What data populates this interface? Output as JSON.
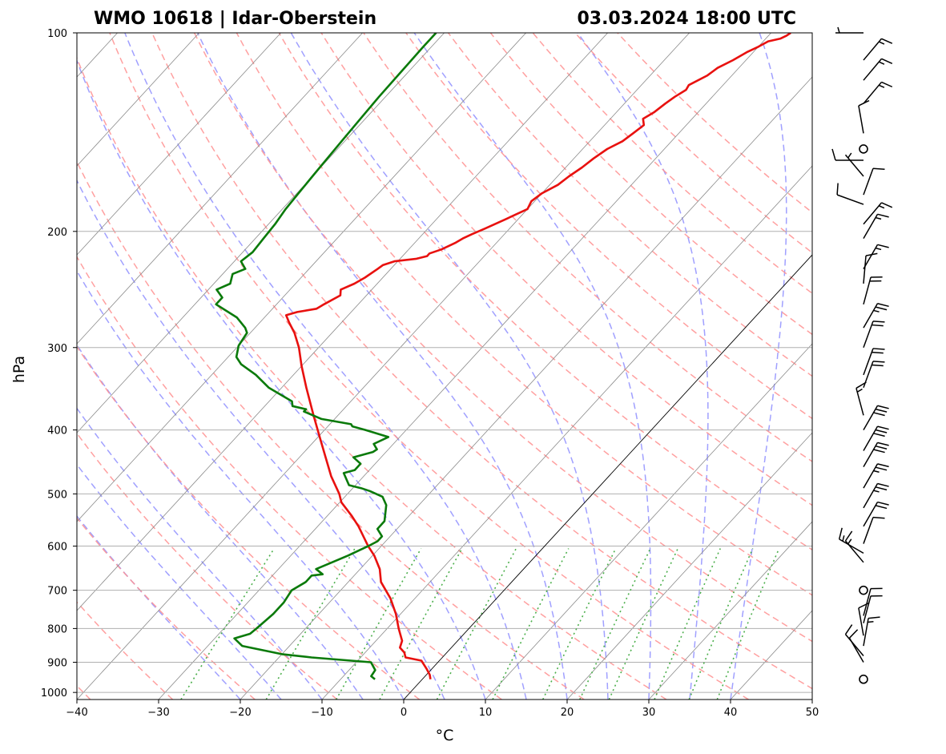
{
  "title_left": "WMO 10618 | Idar-Oberstein",
  "title_right": "03.03.2024 18:00 UTC",
  "chart_data": {
    "type": "line",
    "subtype": "skew-t log-p sounding",
    "xlabel": "°C",
    "ylabel": "hPa",
    "xlim": [
      -40,
      50
    ],
    "ylim": [
      1025,
      100
    ],
    "y_scale": "log",
    "grid": true,
    "x_ticks": [
      -40,
      -30,
      -20,
      -10,
      0,
      10,
      20,
      30,
      40,
      50
    ],
    "x_tick_labels": [
      "−40",
      "−30",
      "−20",
      "−10",
      "0",
      "10",
      "20",
      "30",
      "40",
      "50"
    ],
    "y_ticks": [
      1000,
      900,
      800,
      700,
      600,
      500,
      400,
      300,
      200,
      100
    ],
    "y_tick_labels": [
      "1000",
      "900",
      "800",
      "700",
      "600",
      "500",
      "400",
      "300",
      "200",
      "100"
    ],
    "colors": {
      "temperature": "#e8110f",
      "dewpoint": "#0a7a0a",
      "dry_adiabat": "#ff8f8f",
      "moist_adiabat": "#8f8fff",
      "mixing_ratio": "#4caf4c",
      "isotherm": "#8a8a8a",
      "isobar": "#b0b0b0",
      "zero_isotherm": "#000000",
      "barb": "#000000"
    },
    "series": [
      {
        "key": "temperature",
        "p": [
          955,
          940,
          920,
          895,
          885,
          870,
          855,
          835,
          800,
          760,
          720,
          680,
          650,
          620,
          600,
          560,
          540,
          515,
          500,
          470,
          440,
          410,
          380,
          345,
          320,
          300,
          285,
          275,
          268,
          265,
          262,
          258,
          250,
          245,
          240,
          235,
          228,
          225,
          222,
          220,
          218,
          216,
          213,
          208,
          205,
          202,
          198,
          192,
          185,
          180,
          175,
          170,
          165,
          160,
          155,
          150,
          146,
          142,
          138,
          135,
          132,
          128,
          125,
          122,
          120,
          116,
          113,
          110,
          107,
          105,
          103,
          102,
          101,
          100
        ],
        "t": [
          1.0,
          0.4,
          -0.7,
          -2.2,
          -4.5,
          -5.2,
          -6.3,
          -6.8,
          -8.6,
          -10.6,
          -13.0,
          -16.0,
          -17.6,
          -19.8,
          -21.6,
          -25.0,
          -27.0,
          -29.8,
          -31.0,
          -34.0,
          -36.8,
          -39.8,
          -43.0,
          -47.0,
          -50.0,
          -52.4,
          -54.6,
          -56.4,
          -57.6,
          -56.6,
          -54.6,
          -54.2,
          -53.2,
          -53.8,
          -52.8,
          -52.2,
          -51.6,
          -51.4,
          -50.4,
          -48.0,
          -47.0,
          -47.0,
          -46.0,
          -45.0,
          -44.6,
          -44.0,
          -43.0,
          -41.6,
          -40.0,
          -40.4,
          -40.0,
          -39.0,
          -38.6,
          -38.0,
          -37.6,
          -37.0,
          -36.0,
          -35.6,
          -35.2,
          -36.0,
          -35.4,
          -35.0,
          -34.6,
          -34.0,
          -34.2,
          -33.0,
          -32.6,
          -31.6,
          -30.8,
          -30.0,
          -29.4,
          -28.2,
          -27.8,
          -27.6
        ]
      },
      {
        "key": "dewpoint",
        "p": [
          955,
          945,
          925,
          900,
          885,
          875,
          850,
          828,
          815,
          800,
          760,
          730,
          700,
          680,
          665,
          662,
          650,
          635,
          620,
          600,
          590,
          580,
          565,
          550,
          520,
          505,
          495,
          490,
          485,
          465,
          460,
          450,
          440,
          432,
          428,
          420,
          410,
          400,
          395,
          392,
          385,
          375,
          372,
          368,
          362,
          345,
          330,
          318,
          310,
          298,
          285,
          280,
          270,
          258,
          252,
          245,
          240,
          232,
          228,
          222,
          215,
          205,
          195,
          185,
          175,
          165,
          155,
          145,
          135,
          125,
          115,
          105,
          100
        ],
        "t": [
          -5.8,
          -6.6,
          -6.8,
          -8.2,
          -16.0,
          -20.0,
          -25.8,
          -27.6,
          -26.2,
          -26.0,
          -25.6,
          -25.6,
          -26.0,
          -25.2,
          -25.2,
          -24.0,
          -25.4,
          -24.2,
          -23.0,
          -21.6,
          -21.0,
          -21.0,
          -22.4,
          -22.4,
          -24.0,
          -25.4,
          -27.6,
          -29.0,
          -30.8,
          -32.8,
          -31.8,
          -31.8,
          -33.4,
          -31.6,
          -31.4,
          -32.4,
          -31.4,
          -35.0,
          -37.0,
          -37.4,
          -41.6,
          -44.6,
          -44.6,
          -46.6,
          -47.2,
          -51.6,
          -54.6,
          -57.6,
          -59.0,
          -60.0,
          -60.4,
          -61.2,
          -63.4,
          -67.4,
          -67.4,
          -69.0,
          -68.0,
          -68.8,
          -67.8,
          -69.2,
          -68.8,
          -69.0,
          -69.2,
          -69.6,
          -69.8,
          -70.0,
          -70.2,
          -70.4,
          -70.6,
          -70.8,
          -70.9,
          -71.0,
          -71.0
        ]
      }
    ],
    "wind_barbs": [
      {
        "p": 955,
        "calm": true
      },
      {
        "p": 900,
        "speed": 10,
        "direction": 330
      },
      {
        "p": 880,
        "speed": 10,
        "direction": 320
      },
      {
        "p": 850,
        "speed": 15,
        "direction": 10
      },
      {
        "p": 820,
        "speed": 10,
        "direction": 350
      },
      {
        "p": 785,
        "speed": 10,
        "direction": 15
      },
      {
        "p": 765,
        "speed": 10,
        "direction": 15
      },
      {
        "p": 700,
        "calm": true
      },
      {
        "p": 635,
        "speed": 15,
        "direction": 320
      },
      {
        "p": 615,
        "speed": 15,
        "direction": 300
      },
      {
        "p": 595,
        "speed": 10,
        "direction": 20
      },
      {
        "p": 560,
        "speed": 20,
        "direction": 30
      },
      {
        "p": 525,
        "speed": 25,
        "direction": 30
      },
      {
        "p": 490,
        "speed": 25,
        "direction": 30
      },
      {
        "p": 455,
        "speed": 30,
        "direction": 30
      },
      {
        "p": 430,
        "speed": 30,
        "direction": 30
      },
      {
        "p": 400,
        "speed": 30,
        "direction": 30
      },
      {
        "p": 380,
        "speed": 15,
        "direction": 345
      },
      {
        "p": 345,
        "speed": 20,
        "direction": 20
      },
      {
        "p": 330,
        "speed": 20,
        "direction": 20
      },
      {
        "p": 300,
        "speed": 20,
        "direction": 20
      },
      {
        "p": 280,
        "speed": 25,
        "direction": 30
      },
      {
        "p": 258,
        "speed": 20,
        "direction": 15
      },
      {
        "p": 240,
        "speed": 10,
        "direction": 5
      },
      {
        "p": 228,
        "speed": 15,
        "direction": 30
      },
      {
        "p": 205,
        "speed": 15,
        "direction": 30
      },
      {
        "p": 195,
        "speed": 15,
        "direction": 40
      },
      {
        "p": 182,
        "speed": 10,
        "direction": 290
      },
      {
        "p": 176,
        "speed": 10,
        "direction": 20
      },
      {
        "p": 165,
        "speed": 5,
        "direction": 320
      },
      {
        "p": 156,
        "speed": 10,
        "direction": 270
      },
      {
        "p": 150,
        "calm": true
      },
      {
        "p": 142,
        "speed": 10,
        "direction": 350
      },
      {
        "p": 128,
        "speed": 15,
        "direction": 40
      },
      {
        "p": 118,
        "speed": 15,
        "direction": 40
      },
      {
        "p": 110,
        "speed": 15,
        "direction": 40
      },
      {
        "p": 100,
        "speed": 5,
        "direction": 270
      }
    ]
  }
}
